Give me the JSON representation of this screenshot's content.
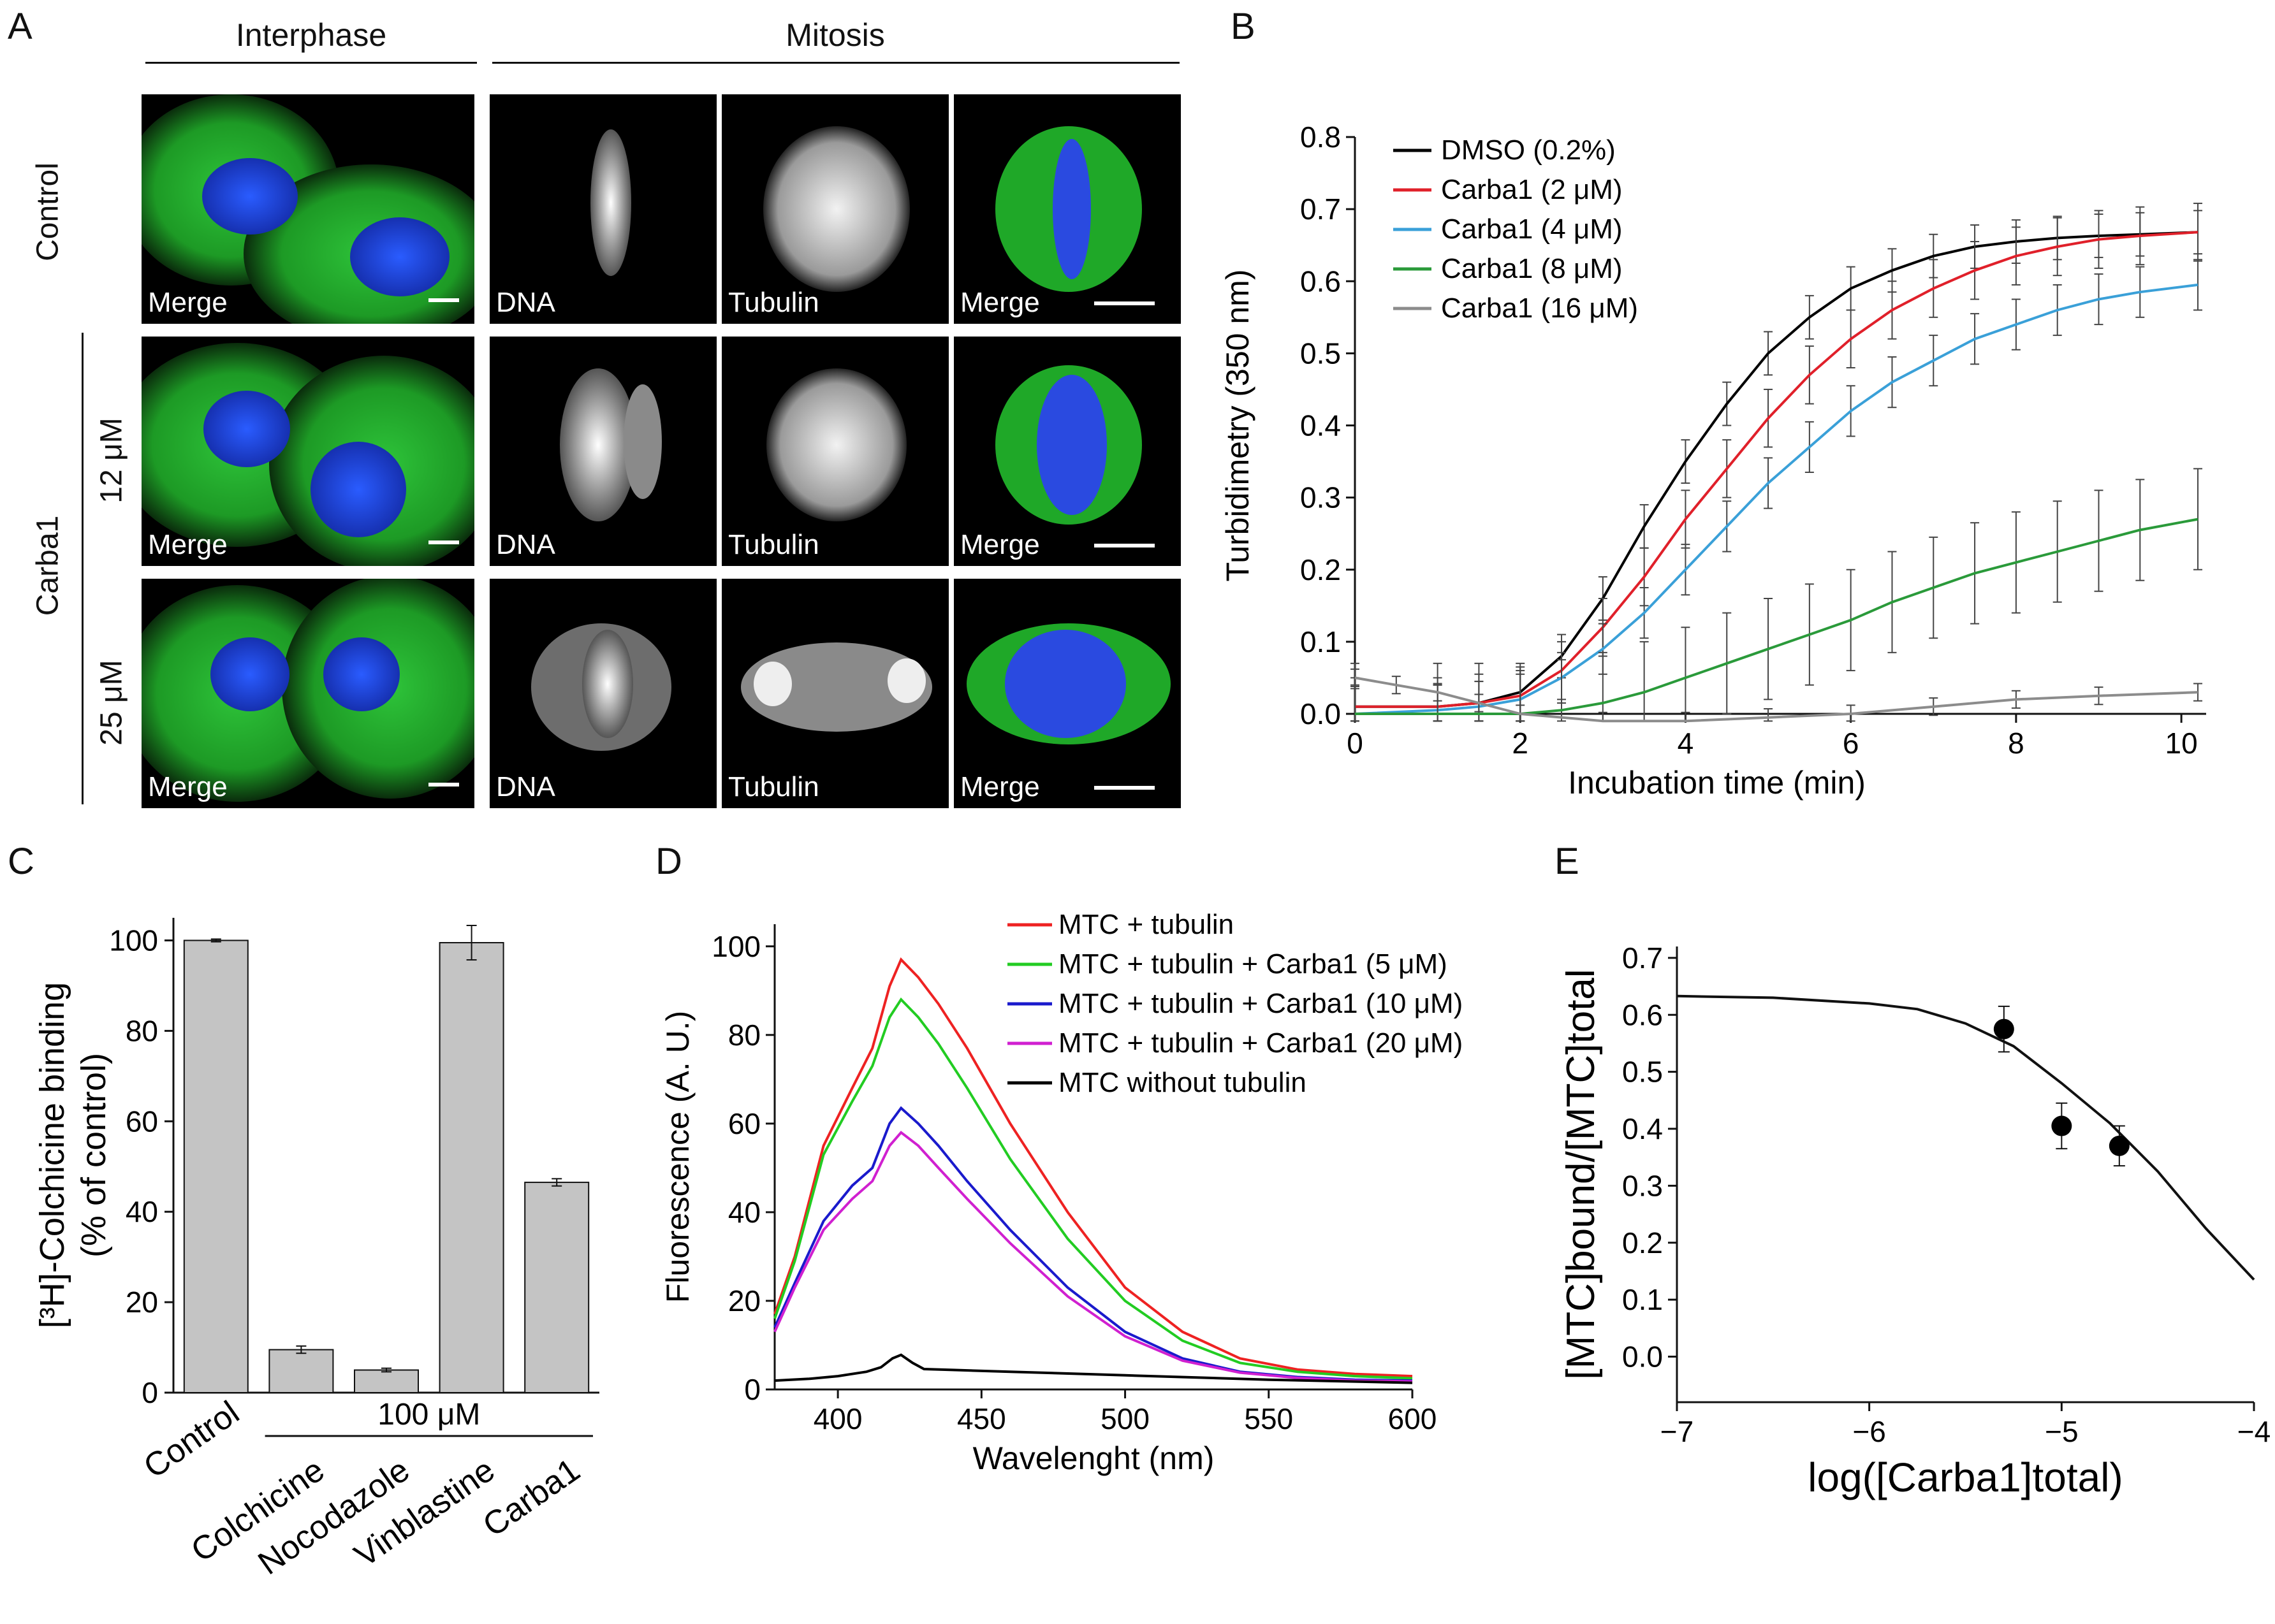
{
  "panel_letters": {
    "a": "A",
    "b": "B",
    "c": "C",
    "d": "D",
    "e": "E"
  },
  "panel_a": {
    "interphase_title": "Interphase",
    "mitosis_title": "Mitosis",
    "row_labels": [
      "Control",
      "12 μM",
      "25 μM"
    ],
    "group_label": "Carba1",
    "image_labels": {
      "merge": "Merge",
      "dna": "DNA",
      "tubulin": "Tubulin"
    }
  },
  "colors": {
    "black": "#000000",
    "red": "#e0202a",
    "lightblue": "#3aa0d8",
    "green": "#2a9a3a",
    "gray": "#8c8c8c",
    "bar": "#c4c4c4",
    "d_red": "#ee2222",
    "d_green": "#22cc22",
    "d_blue": "#1a1acc",
    "d_magenta": "#d020d0",
    "microgreen": "#22b52a",
    "microblue": "#1f3fd8"
  },
  "chart_data": [
    {
      "id": "B",
      "type": "line",
      "xlabel": "Incubation time (min)",
      "ylabel": "Turbidimetry (350 nm)",
      "xlim": [
        0,
        10.3
      ],
      "ylim": [
        0,
        0.8
      ],
      "xticks": [
        0,
        2,
        4,
        6,
        8,
        10
      ],
      "yticks": [
        0.0,
        0.1,
        0.2,
        0.3,
        0.4,
        0.5,
        0.6,
        0.7,
        0.8
      ],
      "ytick_labels": [
        "0.0",
        "0.1",
        "0.2",
        "0.3",
        "0.4",
        "0.5",
        "0.6",
        "0.7",
        "0.8"
      ],
      "legend_position": "top-left",
      "series": [
        {
          "name": "DMSO (0.2%)",
          "color": "#000000",
          "x": [
            0,
            1,
            1.5,
            2,
            2.5,
            3,
            3.5,
            4,
            4.5,
            5,
            5.5,
            6,
            6.5,
            7,
            7.5,
            8,
            8.5,
            9,
            9.5,
            10.2
          ],
          "y": [
            0.01,
            0.01,
            0.015,
            0.03,
            0.08,
            0.16,
            0.26,
            0.35,
            0.43,
            0.5,
            0.55,
            0.59,
            0.615,
            0.635,
            0.648,
            0.655,
            0.66,
            0.663,
            0.665,
            0.668
          ],
          "err": 0.03
        },
        {
          "name": "Carba1 (2 μM)",
          "color": "#e0202a",
          "x": [
            0,
            1,
            1.5,
            2,
            2.5,
            3,
            3.5,
            4,
            4.5,
            5,
            5.5,
            6,
            6.5,
            7,
            7.5,
            8,
            8.5,
            9,
            9.5,
            10.2
          ],
          "y": [
            0.01,
            0.01,
            0.015,
            0.025,
            0.06,
            0.12,
            0.19,
            0.27,
            0.34,
            0.41,
            0.47,
            0.52,
            0.56,
            0.59,
            0.615,
            0.635,
            0.648,
            0.658,
            0.663,
            0.668
          ],
          "err": 0.04
        },
        {
          "name": "Carba1 (4 μM)",
          "color": "#3aa0d8",
          "x": [
            0,
            1,
            1.5,
            2,
            2.5,
            3,
            3.5,
            4,
            4.5,
            5,
            5.5,
            6,
            6.5,
            7,
            7.5,
            8,
            8.5,
            9,
            9.5,
            10.2
          ],
          "y": [
            0.0,
            0.005,
            0.01,
            0.02,
            0.05,
            0.09,
            0.14,
            0.2,
            0.26,
            0.32,
            0.37,
            0.42,
            0.46,
            0.49,
            0.52,
            0.54,
            0.56,
            0.575,
            0.585,
            0.595
          ],
          "err": 0.035
        },
        {
          "name": "Carba1 (8 μM)",
          "color": "#2a9a3a",
          "x": [
            0,
            1,
            1.5,
            2,
            2.5,
            3,
            3.5,
            4,
            4.5,
            5,
            5.5,
            6,
            6.5,
            7,
            7.5,
            8,
            8.5,
            9,
            9.5,
            10.2
          ],
          "y": [
            0.0,
            0.0,
            0.0,
            0.0,
            0.005,
            0.015,
            0.03,
            0.05,
            0.07,
            0.09,
            0.11,
            0.13,
            0.155,
            0.175,
            0.195,
            0.21,
            0.225,
            0.24,
            0.255,
            0.27
          ],
          "err": 0.07
        },
        {
          "name": "Carba1 (16 μM)",
          "color": "#8c8c8c",
          "x": [
            0,
            0.5,
            1,
            1.5,
            2,
            3,
            4,
            5,
            6,
            7,
            8,
            9,
            10.2
          ],
          "y": [
            0.05,
            0.04,
            0.03,
            0.015,
            0.0,
            -0.01,
            -0.01,
            -0.005,
            0.0,
            0.01,
            0.02,
            0.025,
            0.03
          ],
          "err": 0.012
        }
      ]
    },
    {
      "id": "C",
      "type": "bar",
      "ylabel_lines": [
        "[³H]-Colchicine binding",
        "(% of control)"
      ],
      "ylim": [
        0,
        105
      ],
      "yticks": [
        0,
        20,
        40,
        60,
        80,
        100
      ],
      "categories": [
        "Control",
        "Colchicine",
        "Nocodazole",
        "Vinblastine",
        "Carba1"
      ],
      "values": [
        100,
        9.5,
        5,
        99.5,
        46.5
      ],
      "errors": [
        0.3,
        0.8,
        0.4,
        3.8,
        0.8
      ],
      "bracket_label": "100 μM",
      "bracket_from_category": 1
    },
    {
      "id": "D",
      "type": "line",
      "xlabel": "Wavelenght (nm)",
      "ylabel": "Fluorescence (A. U.)",
      "xlim": [
        378,
        600
      ],
      "ylim": [
        0,
        105
      ],
      "xticks": [
        400,
        450,
        500,
        550,
        600
      ],
      "yticks": [
        0,
        20,
        40,
        60,
        80,
        100
      ],
      "legend_position": "top-right",
      "series": [
        {
          "name": "MTC + tubulin",
          "color": "#ee2222",
          "x": [
            378,
            385,
            395,
            405,
            412,
            418,
            422,
            428,
            435,
            445,
            460,
            480,
            500,
            520,
            540,
            560,
            580,
            600
          ],
          "y": [
            17,
            30,
            55,
            68,
            77,
            91,
            97,
            93,
            87,
            77,
            60,
            40,
            23,
            13,
            7,
            4.5,
            3.5,
            3
          ]
        },
        {
          "name": "MTC + tubulin + Carba1 (5 μM)",
          "color": "#22cc22",
          "x": [
            378,
            385,
            395,
            405,
            412,
            418,
            422,
            428,
            435,
            445,
            460,
            480,
            500,
            520,
            540,
            560,
            580,
            600
          ],
          "y": [
            16,
            29,
            53,
            65,
            73,
            84,
            88,
            84,
            78,
            68,
            52,
            34,
            20,
            11,
            6,
            4,
            3,
            2.5
          ]
        },
        {
          "name": "MTC + tubulin + Carba1 (10 μM)",
          "color": "#1a1acc",
          "x": [
            378,
            385,
            395,
            405,
            412,
            418,
            422,
            428,
            435,
            445,
            460,
            480,
            500,
            520,
            540,
            560,
            580,
            600
          ],
          "y": [
            14,
            24,
            38,
            46,
            50,
            60,
            63.5,
            60,
            55,
            47,
            36,
            23,
            13,
            7,
            4,
            2.8,
            2.2,
            2
          ]
        },
        {
          "name": "MTC + tubulin + Carba1 (20 μM)",
          "color": "#d020d0",
          "x": [
            378,
            385,
            395,
            405,
            412,
            418,
            422,
            428,
            435,
            445,
            460,
            480,
            500,
            520,
            540,
            560,
            580,
            600
          ],
          "y": [
            13,
            23,
            36,
            43,
            47,
            55,
            58,
            55,
            50,
            43,
            33,
            21,
            12,
            6.5,
            3.8,
            2.6,
            2,
            1.8
          ]
        },
        {
          "name": "MTC without tubulin",
          "color": "#000000",
          "x": [
            378,
            390,
            400,
            410,
            415,
            419,
            422,
            426,
            430,
            440,
            460,
            500,
            550,
            600
          ],
          "y": [
            2,
            2.4,
            3,
            4,
            5,
            7,
            7.8,
            6,
            4.6,
            4.4,
            4,
            3.2,
            2.2,
            1.5
          ]
        }
      ]
    },
    {
      "id": "E",
      "type": "scatter",
      "xlabel": "log([Carba1]total)",
      "ylabel": "[MTC]bound/[MTC]total",
      "xlim": [
        -7,
        -4
      ],
      "ylim": [
        -0.08,
        0.72
      ],
      "xticks": [
        -7,
        -6,
        -5,
        -4
      ],
      "yticks": [
        0.0,
        0.1,
        0.2,
        0.3,
        0.4,
        0.5,
        0.6,
        0.7
      ],
      "ytick_labels": [
        "0.0",
        "0.1",
        "0.2",
        "0.3",
        "0.4",
        "0.5",
        "0.6",
        "0.7"
      ],
      "points": {
        "x": [
          -5.3,
          -5.0,
          -4.7
        ],
        "y": [
          0.575,
          0.405,
          0.37
        ],
        "err": [
          0.04,
          0.04,
          0.035
        ]
      },
      "fit": {
        "x": [
          -7,
          -6.5,
          -6,
          -5.75,
          -5.5,
          -5.25,
          -5,
          -4.75,
          -4.5,
          -4.25,
          -4
        ],
        "y": [
          0.633,
          0.63,
          0.62,
          0.61,
          0.585,
          0.545,
          0.48,
          0.41,
          0.325,
          0.225,
          0.135
        ]
      }
    }
  ]
}
